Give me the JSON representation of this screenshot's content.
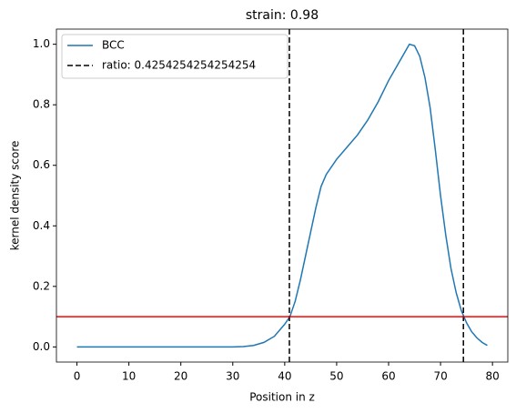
{
  "chart_data": {
    "type": "line",
    "title": "strain: 0.98",
    "x_label": "Position in z",
    "y_label": "kernel density score",
    "xlim": [
      -3.95,
      82.95
    ],
    "ylim": [
      -0.05,
      1.05
    ],
    "xticks": [
      0,
      10,
      20,
      30,
      40,
      50,
      60,
      70,
      80
    ],
    "yticks": [
      {
        "value": 0,
        "label": "0.0"
      },
      0.2,
      0.4,
      0.6,
      0.8,
      {
        "value": 1,
        "label": "1.0"
      }
    ],
    "legend": "upper left",
    "series": [
      {
        "name": "BCC",
        "color": "#1f77b4",
        "x": [
          0,
          5,
          10,
          15,
          20,
          25,
          30,
          32,
          34,
          36,
          38,
          40,
          41,
          42,
          43,
          44,
          45,
          46,
          47,
          48,
          50,
          52,
          54,
          56,
          58,
          60,
          62,
          63,
          64,
          65,
          66,
          67,
          68,
          69,
          70,
          71,
          72,
          73,
          74,
          75,
          76,
          77,
          78,
          79
        ],
        "values": [
          0,
          0,
          0,
          0,
          0,
          0,
          0,
          0.001,
          0.005,
          0.015,
          0.035,
          0.075,
          0.1,
          0.15,
          0.22,
          0.3,
          0.38,
          0.46,
          0.53,
          0.57,
          0.62,
          0.66,
          0.7,
          0.75,
          0.81,
          0.88,
          0.94,
          0.97,
          1.0,
          0.995,
          0.96,
          0.89,
          0.79,
          0.65,
          0.5,
          0.37,
          0.26,
          0.18,
          0.12,
          0.08,
          0.05,
          0.03,
          0.015,
          0.005
        ]
      }
    ],
    "vlines": {
      "name": "ratio: 0.4254254254254254",
      "color": "#000000",
      "values": [
        40.9,
        74.4
      ]
    },
    "hline": {
      "value": 0.1,
      "color": "#ff0000"
    }
  }
}
